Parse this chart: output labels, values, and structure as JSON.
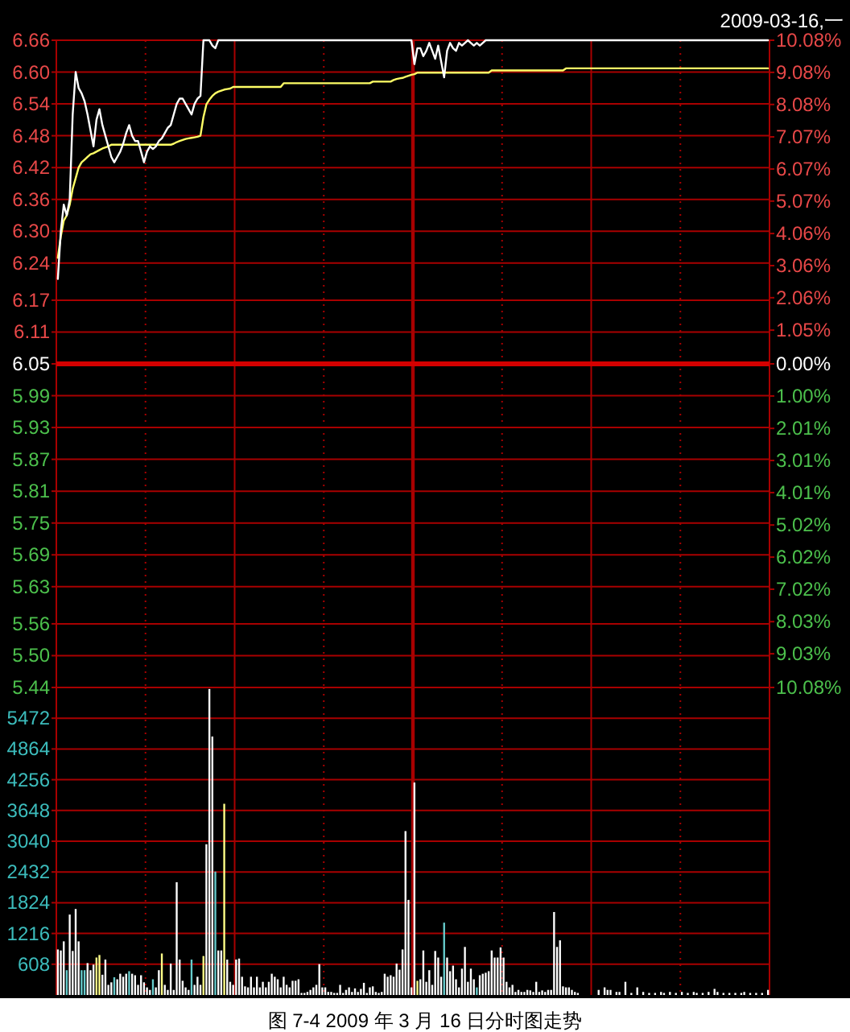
{
  "chart_data": [
    {
      "type": "line",
      "annotations": [
        "2009-03-16,一"
      ],
      "categories": [
        null,
        null,
        null,
        null,
        null,
        null,
        null,
        null,
        null,
        null,
        null,
        null,
        null,
        null,
        null,
        null,
        null,
        null,
        null,
        null,
        null,
        null,
        null,
        null,
        null,
        null,
        null,
        null,
        null,
        null,
        null,
        null,
        null,
        null,
        null,
        null,
        null,
        null,
        null,
        null,
        null,
        null,
        null,
        null,
        null,
        null,
        null,
        null,
        null,
        null,
        null,
        null,
        null,
        null,
        null,
        null,
        null,
        null,
        null,
        null,
        null,
        null,
        null,
        null,
        null,
        null,
        null,
        null,
        null,
        null,
        null,
        null,
        null,
        null,
        null,
        null,
        null,
        null,
        null,
        null,
        null,
        null,
        null,
        null,
        null,
        null,
        null,
        null,
        null,
        null,
        null,
        null,
        null,
        null,
        null,
        null,
        null,
        null,
        null,
        null,
        null,
        null,
        null,
        null,
        null,
        null,
        null,
        null,
        null,
        null,
        null,
        null,
        null,
        null,
        null,
        null,
        null,
        null,
        null,
        null,
        null,
        null,
        null,
        null,
        null,
        null,
        null,
        null,
        null,
        null,
        null,
        null,
        null,
        null,
        null,
        null,
        null,
        null,
        null,
        null,
        null,
        null,
        null,
        null,
        null,
        null,
        null,
        null,
        null,
        null,
        null,
        null,
        null,
        null,
        null,
        null,
        null,
        null,
        null,
        null,
        null,
        null,
        null,
        null,
        null,
        null,
        null,
        null,
        null,
        null,
        null,
        null,
        null,
        null,
        null,
        null,
        null,
        null,
        null,
        null,
        null,
        null,
        null,
        null,
        null,
        null,
        null,
        null,
        null,
        null,
        null,
        null,
        null,
        null,
        null,
        null,
        null,
        null,
        null,
        null,
        null,
        null,
        null,
        null,
        null,
        null,
        null,
        null,
        null,
        null,
        null,
        null,
        null,
        null,
        null,
        null,
        null,
        null,
        null,
        null,
        null,
        null,
        null,
        null,
        null,
        null,
        null,
        null,
        null,
        null,
        null,
        null,
        null,
        null,
        null,
        null,
        null,
        null,
        null,
        null
      ],
      "series": [
        {
          "color": "#ffff66",
          "values": [
            6.25,
            6.29,
            6.32,
            6.33,
            6.35,
            6.38,
            6.4,
            6.42,
            6.43,
            6.435,
            6.44,
            6.445,
            6.447,
            6.45,
            6.453,
            6.456,
            6.458,
            6.46,
            6.463,
            6.463,
            6.463,
            6.463,
            6.463,
            6.463,
            6.463,
            6.463,
            6.463,
            6.463,
            6.463,
            6.463,
            6.463,
            6.463,
            6.463,
            6.463,
            6.463,
            6.463,
            6.463,
            6.463,
            6.463,
            6.465,
            6.468,
            6.47,
            6.472,
            6.474,
            6.475,
            6.476,
            6.477,
            6.478,
            6.48,
            6.515,
            6.539,
            6.548,
            6.555,
            6.56,
            6.563,
            6.565,
            6.567,
            6.568,
            6.569,
            6.572,
            6.572,
            6.572,
            6.572,
            6.572,
            6.572,
            6.572,
            6.572,
            6.572,
            6.572,
            6.572,
            6.572,
            6.572,
            6.572,
            6.572,
            6.572,
            6.572,
            6.579,
            6.579,
            6.579,
            6.579,
            6.579,
            6.579,
            6.579,
            6.579,
            6.579,
            6.579,
            6.579,
            6.579,
            6.579,
            6.579,
            6.579,
            6.579,
            6.579,
            6.579,
            6.579,
            6.579,
            6.579,
            6.579,
            6.579,
            6.579,
            6.579,
            6.579,
            6.579,
            6.579,
            6.579,
            6.579,
            6.582,
            6.582,
            6.582,
            6.582,
            6.582,
            6.582,
            6.582,
            6.585,
            6.587,
            6.588,
            6.589,
            6.591,
            6.593,
            6.595,
            6.596,
            6.599,
            6.599,
            6.599,
            6.599,
            6.599,
            6.599,
            6.599,
            6.599,
            6.599,
            6.599,
            6.599,
            6.599,
            6.599,
            6.599,
            6.599,
            6.599,
            6.599,
            6.599,
            6.599,
            6.599,
            6.599,
            6.599,
            6.599,
            6.599,
            6.599,
            6.603,
            6.603,
            6.603,
            6.603,
            6.603,
            6.603,
            6.603,
            6.603,
            6.603,
            6.603,
            6.603,
            6.603,
            6.603,
            6.603,
            6.603,
            6.603,
            6.603,
            6.603,
            6.603,
            6.603,
            6.603,
            6.603,
            6.603,
            6.603,
            6.603,
            6.607,
            6.607,
            6.607,
            6.607,
            6.607,
            6.607,
            6.607,
            6.607,
            6.607,
            6.607,
            6.607,
            6.607,
            6.607,
            6.607,
            6.607,
            6.607,
            6.607,
            6.607,
            6.607,
            6.607,
            6.607,
            6.607,
            6.607,
            6.607,
            6.607,
            6.607,
            6.607,
            6.607,
            6.607,
            6.607,
            6.607,
            6.607,
            6.607,
            6.607,
            6.607,
            6.607,
            6.607,
            6.607,
            6.607,
            6.607,
            6.607,
            6.607,
            6.607,
            6.607,
            6.607,
            6.607,
            6.607,
            6.607,
            6.607,
            6.607,
            6.607,
            6.607,
            6.607,
            6.607,
            6.607,
            6.607,
            6.607,
            6.607,
            6.607,
            6.607,
            6.607,
            6.607,
            6.607,
            6.607,
            6.607,
            6.607,
            6.607,
            6.607,
            6.607
          ]
        },
        {
          "color": "#ffffff",
          "values": [
            6.21,
            6.3,
            6.35,
            6.33,
            6.36,
            6.52,
            6.6,
            6.57,
            6.56,
            6.545,
            6.52,
            6.49,
            6.46,
            6.51,
            6.53,
            6.5,
            6.48,
            6.46,
            6.44,
            6.43,
            6.44,
            6.45,
            6.465,
            6.485,
            6.5,
            6.48,
            6.47,
            6.47,
            6.45,
            6.43,
            6.45,
            6.46,
            6.455,
            6.46,
            6.47,
            6.475,
            6.485,
            6.495,
            6.5,
            6.52,
            6.54,
            6.55,
            6.55,
            6.54,
            6.53,
            6.52,
            6.54,
            6.55,
            6.555,
            6.66,
            6.66,
            6.66,
            6.65,
            6.645,
            6.66,
            6.66,
            6.66,
            6.66,
            6.66,
            6.66,
            6.66,
            6.66,
            6.66,
            6.66,
            6.66,
            6.66,
            6.66,
            6.66,
            6.66,
            6.66,
            6.66,
            6.66,
            6.66,
            6.66,
            6.66,
            6.66,
            6.66,
            6.66,
            6.66,
            6.66,
            6.66,
            6.66,
            6.66,
            6.66,
            6.66,
            6.66,
            6.66,
            6.66,
            6.66,
            6.66,
            6.66,
            6.66,
            6.66,
            6.66,
            6.66,
            6.66,
            6.66,
            6.66,
            6.66,
            6.66,
            6.66,
            6.66,
            6.66,
            6.66,
            6.66,
            6.66,
            6.66,
            6.66,
            6.66,
            6.66,
            6.66,
            6.66,
            6.66,
            6.66,
            6.66,
            6.66,
            6.66,
            6.66,
            6.66,
            6.66,
            6.615,
            6.645,
            6.645,
            6.63,
            6.64,
            6.655,
            6.64,
            6.625,
            6.65,
            6.62,
            6.59,
            6.64,
            6.655,
            6.645,
            6.64,
            6.655,
            6.65,
            6.655,
            6.66,
            6.655,
            6.65,
            6.655,
            6.65,
            6.655,
            6.66,
            6.66,
            6.66,
            6.66,
            6.66,
            6.66,
            6.66,
            6.66,
            6.66,
            6.66,
            6.66,
            6.66,
            6.66,
            6.66,
            6.66,
            6.66,
            6.66,
            6.66,
            6.66,
            6.66,
            6.66,
            6.66,
            6.66,
            6.66,
            6.66,
            6.66,
            6.66,
            6.66,
            6.66,
            6.66,
            6.66,
            6.66,
            6.66,
            6.66,
            6.66,
            6.66,
            6.66,
            6.66,
            6.66,
            6.66,
            6.66,
            6.66,
            6.66,
            6.66,
            6.66,
            6.66,
            6.66,
            6.66,
            6.66,
            6.66,
            6.66,
            6.66,
            6.66,
            6.66,
            6.66,
            6.66,
            6.66,
            6.66,
            6.66,
            6.66,
            6.66,
            6.66,
            6.66,
            6.66,
            6.66,
            6.66,
            6.66,
            6.66,
            6.66,
            6.66,
            6.66,
            6.66,
            6.66,
            6.66,
            6.66,
            6.66,
            6.66,
            6.66,
            6.66,
            6.66,
            6.66,
            6.66,
            6.66,
            6.66,
            6.66,
            6.66,
            6.66,
            6.66,
            6.66,
            6.66,
            6.66,
            6.66,
            6.66,
            6.66,
            6.66,
            6.66
          ]
        }
      ],
      "ylim": [
        5.44,
        6.66
      ],
      "yticks": [
        6.66,
        {
          "value": 6.6,
          "label": "6.60"
        },
        6.54,
        6.48,
        6.42,
        6.36,
        {
          "value": 6.3,
          "label": "6.30"
        },
        6.24,
        6.17,
        6.11,
        6.05,
        5.99,
        5.93,
        5.87,
        5.81,
        5.75,
        5.69,
        5.63,
        5.56,
        {
          "value": 5.5,
          "label": "5.50"
        },
        5.44
      ],
      "y2lim": [
        -10.08,
        10.08
      ],
      "y2ticks": [
        {
          "value": 10.08,
          "label": "10.08%"
        },
        {
          "value": 9.08,
          "label": "9.08%"
        },
        {
          "value": 8.08,
          "label": "8.08%"
        },
        {
          "value": 7.07,
          "label": "7.07%"
        },
        {
          "value": 6.07,
          "label": "6.07%"
        },
        {
          "value": 5.07,
          "label": "5.07%"
        },
        {
          "value": 4.06,
          "label": "4.06%"
        },
        {
          "value": 3.06,
          "label": "3.06%"
        },
        {
          "value": 2.06,
          "label": "2.06%"
        },
        {
          "value": 1.05,
          "label": "1.05%"
        },
        {
          "value": 0,
          "label": "0.00%"
        },
        {
          "value": -1.0,
          "label": "1.00%"
        },
        {
          "value": -2.01,
          "label": "2.01%"
        },
        {
          "value": -3.01,
          "label": "3.01%"
        },
        {
          "value": -4.01,
          "label": "4.01%"
        },
        {
          "value": -5.02,
          "label": "5.02%"
        },
        {
          "value": -6.02,
          "label": "6.02%"
        },
        {
          "value": -7.02,
          "label": "7.02%"
        },
        {
          "value": -8.03,
          "label": "8.03%"
        },
        {
          "value": -9.03,
          "label": "9.03%"
        },
        {
          "value": -10.08,
          "label": "10.08%"
        }
      ],
      "ref_lines": [
        {
          "axis": "y",
          "value": 6.05,
          "color": "#d40000"
        }
      ],
      "grid": true
    },
    {
      "type": "bar",
      "annotations": [
        "图 7-4    2009 年 3 月 16 日分时图走势"
      ],
      "categories": [
        null,
        null,
        null,
        null,
        null,
        null,
        null,
        null,
        null,
        null,
        null,
        null,
        null,
        null,
        null,
        null,
        null,
        null,
        null,
        null,
        null,
        null,
        null,
        null,
        null,
        null,
        null,
        null,
        null,
        null,
        null,
        null,
        null,
        null,
        null,
        null,
        null,
        null,
        null,
        null,
        null,
        null,
        null,
        null,
        null,
        null,
        null,
        null,
        null,
        null,
        null,
        null,
        null,
        null,
        null,
        null,
        null,
        null,
        null,
        null,
        null,
        null,
        null,
        null,
        null,
        null,
        null,
        null,
        null,
        null,
        null,
        null,
        null,
        null,
        null,
        null,
        null,
        null,
        null,
        null,
        null,
        null,
        null,
        null,
        null,
        null,
        null,
        null,
        null,
        null,
        null,
        null,
        null,
        null,
        null,
        null,
        null,
        null,
        null,
        null,
        null,
        null,
        null,
        null,
        null,
        null,
        null,
        null,
        null,
        null,
        null,
        null,
        null,
        null,
        null,
        null,
        null,
        null,
        null,
        null,
        null,
        null,
        null,
        null,
        null,
        null,
        null,
        null,
        null,
        null,
        null,
        null,
        null,
        null,
        null,
        null,
        null,
        null,
        null,
        null,
        null,
        null,
        null,
        null,
        null,
        null,
        null,
        null,
        null,
        null,
        null,
        null,
        null,
        null,
        null,
        null,
        null,
        null,
        null,
        null,
        null,
        null,
        null,
        null,
        null,
        null,
        null,
        null,
        null,
        null,
        null,
        null,
        null,
        null,
        null,
        null,
        null,
        null,
        null,
        null,
        null,
        null,
        null,
        null,
        null,
        null,
        null,
        null,
        null,
        null,
        null,
        null,
        null,
        null,
        null,
        null,
        null,
        null,
        null,
        null,
        null,
        null,
        null,
        null,
        null,
        null,
        null,
        null,
        null,
        null,
        null,
        null,
        null,
        null,
        null,
        null,
        null,
        null,
        null,
        null,
        null,
        null,
        null,
        null,
        null,
        null,
        null,
        null,
        null,
        null,
        null,
        null,
        null,
        null,
        null,
        null,
        null,
        null,
        null,
        null
      ],
      "values": [
        900,
        880,
        1060,
        490,
        1590,
        870,
        1700,
        1060,
        490,
        490,
        630,
        490,
        600,
        740,
        790,
        400,
        700,
        200,
        250,
        350,
        310,
        420,
        360,
        420,
        470,
        420,
        390,
        200,
        390,
        250,
        150,
        100,
        310,
        150,
        490,
        820,
        200,
        100,
        620,
        100,
        2230,
        700,
        280,
        150,
        100,
        700,
        200,
        360,
        200,
        770,
        2980,
        6050,
        5110,
        2440,
        880,
        880,
        3780,
        700,
        260,
        200,
        700,
        720,
        360,
        170,
        150,
        360,
        150,
        360,
        150,
        260,
        150,
        260,
        420,
        360,
        310,
        150,
        360,
        200,
        150,
        280,
        280,
        310,
        40,
        40,
        60,
        100,
        150,
        200,
        610,
        150,
        150,
        60,
        60,
        40,
        40,
        200,
        40,
        100,
        150,
        60,
        130,
        60,
        120,
        240,
        40,
        150,
        170,
        60,
        40,
        60,
        420,
        360,
        390,
        360,
        620,
        500,
        900,
        3240,
        1880,
        150,
        4200,
        280,
        310,
        880,
        260,
        490,
        200,
        870,
        740,
        360,
        1430,
        740,
        470,
        580,
        310,
        150,
        520,
        950,
        260,
        520,
        310,
        150,
        390,
        420,
        440,
        470,
        880,
        740,
        740,
        940,
        740,
        260,
        150,
        200,
        60,
        100,
        60,
        60,
        100,
        90,
        60,
        260,
        60,
        90,
        60,
        100,
        100,
        1640,
        950,
        1080,
        170,
        150,
        150,
        100,
        60,
        40,
        null,
        null,
        null,
        null,
        null,
        null,
        100,
        null,
        150,
        100,
        100,
        null,
        60,
        60,
        null,
        260,
        null,
        40,
        null,
        150,
        null,
        60,
        null,
        40,
        null,
        40,
        null,
        60,
        40,
        null,
        60,
        null,
        40,
        null,
        60,
        null,
        40,
        null,
        60,
        40,
        null,
        40,
        null,
        60,
        null,
        120,
        60,
        null,
        40,
        null,
        40,
        null,
        40,
        null,
        40,
        60,
        null,
        40,
        null,
        40,
        null,
        40,
        null,
        100
      ],
      "colors": [
        "#ffffff",
        "#ffffff",
        "#ffffff",
        "#66cccc",
        "#ffffff",
        "#ffffff",
        "#ffffff",
        "#ffffff",
        "#66cccc",
        "#66cccc",
        "#ffffff",
        "#ffffff",
        "#ffffff",
        "#ffff88",
        "#ffff88",
        "#ffffff",
        "#ffffff",
        "#ffffff",
        "#ffffff",
        "#66cccc",
        "#ffffff",
        "#ffffff",
        "#ffffff",
        "#ffffff",
        "#66cccc",
        "#ffffff",
        "#ffffff",
        "#ffffff",
        "#ffffff",
        "#ffffff",
        "#ffffff",
        "#ffffff",
        "#66cccc",
        "#ffffff",
        "#ffffff",
        "#ffff88",
        "#ffffff",
        "#ffffff",
        "#ffffff",
        "#ffffff",
        "#ffffff",
        "#ffffff",
        "#ffffff",
        "#ffffff",
        "#ffffff",
        "#66cccc",
        "#ffffff",
        "#ffffff",
        "#ffffff",
        "#ffff88",
        "#ffffff",
        "#ffffff",
        "#ffffff",
        "#66cccc",
        "#ffffff",
        "#ffffff",
        "#ffff88",
        "#ffffff",
        "#ffffff",
        "#ffffff",
        "#ffffff",
        "#ffffff",
        "#ffffff",
        "#ffffff",
        "#ffffff",
        "#ffffff",
        "#ffffff",
        "#ffffff",
        "#ffffff",
        "#ffffff",
        "#ffffff",
        "#ffffff",
        "#ffffff",
        "#ffffff",
        "#ffffff",
        "#ffffff",
        "#ffffff",
        "#ffffff",
        "#ffffff",
        "#ffffff",
        "#ffffff",
        "#ffffff",
        "#ffffff",
        "#ffffff",
        "#ffffff",
        "#ffffff",
        "#ffffff",
        "#ffffff",
        "#ffffff",
        "#ffffff",
        "#ffffff",
        "#ffffff",
        "#ffffff",
        "#ffffff",
        "#ffffff",
        "#ffffff",
        "#ffffff",
        "#ffffff",
        "#ffffff",
        "#ffffff",
        "#ffffff",
        "#ffffff",
        "#ffffff",
        "#ffffff",
        "#ffffff",
        "#ffffff",
        "#ffffff",
        "#ffffff",
        "#ffffff",
        "#ffffff",
        "#ffffff",
        "#ffffff",
        "#ffffff",
        "#ffffff",
        "#ffffff",
        "#ffffff",
        "#ffffff",
        "#ffffff",
        "#ffffff",
        "#ffffff",
        "#ffffff",
        "#ffff88",
        "#ffffff",
        "#ffffff",
        "#ffffff",
        "#ffffff",
        "#ffffff",
        "#ffffff",
        "#ffffff",
        "#ffffff",
        "#66cccc",
        "#ffffff",
        "#ffffff",
        "#ffffff",
        "#ffffff",
        "#ffffff",
        "#ffffff",
        "#ffffff",
        "#ffffff",
        "#ffffff",
        "#ffffff",
        "#66cccc",
        "#ffffff",
        "#ffffff",
        "#ffffff",
        "#ffffff",
        "#ffffff",
        "#ffffff",
        "#ffffff",
        "#ffffff",
        "#ffffff",
        "#ffffff",
        "#ffffff",
        "#ffffff",
        "#ffffff",
        "#ffffff",
        "#ffffff",
        "#ffffff",
        "#ffffff",
        "#ffffff",
        "#ffffff",
        "#ffffff",
        "#ffffff",
        "#ffffff",
        "#ffffff",
        "#ffffff",
        "#ffffff",
        "#ffffff",
        "#ffffff",
        "#ffffff",
        "#ffffff",
        "#ffffff",
        "#ffffff",
        "#ffffff",
        "#ffffff",
        "#ffffff",
        null,
        null,
        null,
        null,
        null,
        null,
        "#ffffff",
        null,
        "#ffffff",
        "#ffffff",
        "#ffffff",
        null,
        "#ffffff",
        "#ffffff",
        null,
        "#ffffff",
        null,
        "#ffffff",
        null,
        "#ffffff",
        null,
        "#ffffff",
        null,
        "#ffffff",
        null,
        "#ffffff",
        null,
        "#ffffff",
        "#ffffff",
        null,
        "#ffffff",
        null,
        "#ffffff",
        null,
        "#ffffff",
        null,
        "#ffffff",
        null,
        "#ffffff",
        "#ffffff",
        null,
        "#ffffff",
        null,
        "#ffffff",
        null,
        "#ffffff",
        "#ffffff",
        null,
        "#ffffff",
        null,
        "#ffffff",
        null,
        "#ffffff",
        null,
        "#ffffff",
        "#ffffff",
        null,
        "#ffffff",
        null,
        "#ffffff",
        null,
        "#ffffff",
        null,
        "#ffffff"
      ],
      "ylim": [
        0,
        6080
      ],
      "yticks": [
        5472,
        4864,
        4256,
        3648,
        3040,
        2432,
        1824,
        1216,
        608
      ],
      "grid": true
    }
  ]
}
